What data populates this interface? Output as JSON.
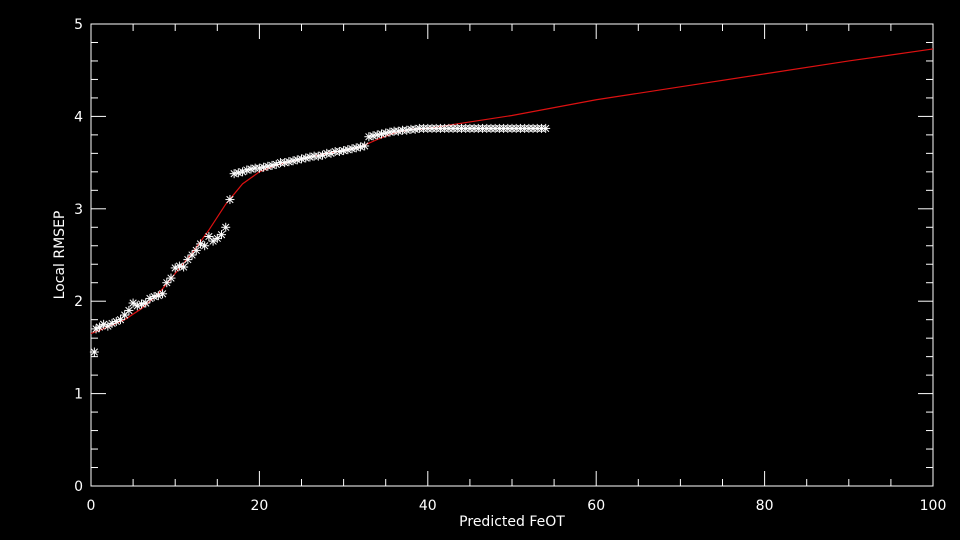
{
  "chart_data": {
    "type": "scatter",
    "title": "",
    "xlabel": "Predicted FeOT",
    "ylabel": "Local RMSEP",
    "xlim": [
      0,
      100
    ],
    "ylim": [
      0,
      5
    ],
    "x_major_ticks": [
      0,
      20,
      40,
      60,
      80,
      100
    ],
    "y_major_ticks": [
      0,
      1,
      2,
      3,
      4,
      5
    ],
    "x_tick_labels": [
      "0",
      "20",
      "40",
      "60",
      "80",
      "100"
    ],
    "y_tick_labels": [
      "0",
      "1",
      "2",
      "3",
      "4",
      "5"
    ],
    "x_minor_step": 5,
    "y_minor_step": 0.2,
    "grid": false,
    "legend": "none",
    "colors": {
      "background": "#000000",
      "axes": "#ffffff",
      "points": "#ffffff",
      "curve": "#dd1111"
    },
    "series": [
      {
        "kind": "points",
        "marker": "asterisk",
        "x": [
          0.4,
          0.6,
          1.0,
          1.5,
          2.0,
          2.5,
          3.0,
          3.5,
          4.0,
          4.5,
          5.0,
          5.5,
          6.0,
          6.5,
          7.0,
          7.5,
          8.0,
          8.5,
          9.0,
          9.5,
          10.0,
          10.5,
          11.0,
          11.5,
          12.0,
          12.5,
          13.0,
          13.5,
          14.0,
          14.5,
          15.0,
          15.5,
          16.0,
          16.5,
          17.0,
          17.5,
          18.0,
          18.5,
          19.0,
          19.5,
          20.0,
          20.5,
          21.0,
          21.5,
          22.0,
          22.5,
          23.0,
          23.5,
          24.0,
          24.5,
          25.0,
          25.5,
          26.0,
          26.5,
          27.0,
          27.5,
          28.0,
          28.5,
          29.0,
          29.5,
          30.0,
          30.5,
          31.0,
          31.5,
          32.0,
          32.5,
          33.0,
          33.5,
          34.0,
          34.5,
          35.0,
          35.5,
          36.0,
          36.5,
          37.0,
          37.5,
          38.0,
          38.5,
          39.0,
          39.5,
          40.0,
          40.5,
          41.0,
          41.5,
          42.0,
          42.5,
          43.0,
          43.5,
          44.0,
          44.5,
          45.0,
          45.5,
          46.0,
          46.5,
          47.0,
          47.5,
          48.0,
          48.5,
          49.0,
          49.5,
          50.0,
          50.5,
          51.0,
          51.5,
          52.0,
          52.5,
          53.0,
          53.5,
          54.0
        ],
        "y": [
          1.45,
          1.7,
          1.72,
          1.75,
          1.73,
          1.76,
          1.78,
          1.8,
          1.85,
          1.9,
          1.98,
          1.95,
          1.97,
          1.98,
          2.03,
          2.05,
          2.06,
          2.08,
          2.2,
          2.25,
          2.36,
          2.38,
          2.37,
          2.45,
          2.5,
          2.55,
          2.62,
          2.6,
          2.7,
          2.65,
          2.68,
          2.72,
          2.8,
          3.1,
          3.38,
          3.39,
          3.4,
          3.42,
          3.43,
          3.44,
          3.44,
          3.45,
          3.46,
          3.47,
          3.48,
          3.5,
          3.5,
          3.51,
          3.52,
          3.53,
          3.54,
          3.55,
          3.56,
          3.57,
          3.57,
          3.58,
          3.6,
          3.6,
          3.62,
          3.62,
          3.63,
          3.64,
          3.65,
          3.66,
          3.67,
          3.68,
          3.78,
          3.79,
          3.8,
          3.81,
          3.82,
          3.83,
          3.84,
          3.84,
          3.85,
          3.85,
          3.86,
          3.86,
          3.87,
          3.87,
          3.87,
          3.87,
          3.87,
          3.87,
          3.87,
          3.87,
          3.87,
          3.87,
          3.87,
          3.87,
          3.87,
          3.87,
          3.87,
          3.87,
          3.87,
          3.87,
          3.87,
          3.87,
          3.87,
          3.87,
          3.87,
          3.87,
          3.87,
          3.87,
          3.87,
          3.87,
          3.87,
          3.87,
          3.87
        ]
      },
      {
        "kind": "curve",
        "x": [
          0,
          2,
          4,
          6,
          8,
          10,
          12,
          14,
          16,
          18,
          20,
          22,
          24,
          26,
          28,
          30,
          32,
          34,
          36,
          38,
          40,
          45,
          50,
          60,
          70,
          80,
          90,
          100
        ],
        "y": [
          1.65,
          1.72,
          1.8,
          1.92,
          2.08,
          2.3,
          2.52,
          2.77,
          3.05,
          3.27,
          3.4,
          3.47,
          3.52,
          3.56,
          3.6,
          3.63,
          3.67,
          3.75,
          3.82,
          3.86,
          3.87,
          3.94,
          4.01,
          4.18,
          4.32,
          4.46,
          4.6,
          4.73
        ]
      }
    ]
  }
}
